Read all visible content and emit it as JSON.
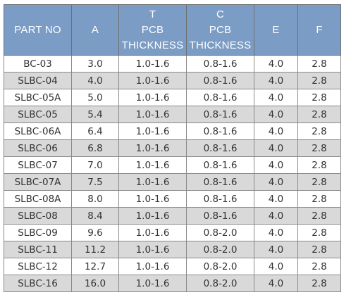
{
  "table": {
    "headers": [
      {
        "lines": [
          "PART NO"
        ]
      },
      {
        "lines": [
          "A"
        ]
      },
      {
        "lines": [
          "T",
          "PCB",
          "THICKNESS"
        ]
      },
      {
        "lines": [
          "C",
          "PCB",
          "THICKNESS"
        ]
      },
      {
        "lines": [
          "E"
        ]
      },
      {
        "lines": [
          "F"
        ]
      }
    ],
    "rows": [
      [
        "BC-03",
        "3.0",
        "1.0-1.6",
        "0.8-1.6",
        "4.0",
        "2.8"
      ],
      [
        "SLBC-04",
        "4.0",
        "1.0-1.6",
        "0.8-1.6",
        "4.0",
        "2.8"
      ],
      [
        "SLBC-05A",
        "5.0",
        "1.0-1.6",
        "0.8-1.6",
        "4.0",
        "2.8"
      ],
      [
        "SLBC-05",
        "5.4",
        "1.0-1.6",
        "0.8-1.6",
        "4.0",
        "2.8"
      ],
      [
        "SLBC-06A",
        "6.4",
        "1.0-1.6",
        "0.8-1.6",
        "4.0",
        "2.8"
      ],
      [
        "SLBC-06",
        "6.8",
        "1.0-1.6",
        "0.8-1.6",
        "4.0",
        "2.8"
      ],
      [
        "SLBC-07",
        "7.0",
        "1.0-1.6",
        "0.8-1.6",
        "4.0",
        "2.8"
      ],
      [
        "SLBC-07A",
        "7.5",
        "1.0-1.6",
        "0.8-1.6",
        "4.0",
        "2.8"
      ],
      [
        "SLBC-08A",
        "8.0",
        "1.0-1.6",
        "0.8-1.6",
        "4.0",
        "2.8"
      ],
      [
        "SLBC-08",
        "8.4",
        "1.0-1.6",
        "0.8-1.6",
        "4.0",
        "2.8"
      ],
      [
        "SLBC-09",
        "9.6",
        "1.0-1.6",
        "0.8-2.0",
        "4.0",
        "2.8"
      ],
      [
        "SLBC-11",
        "11.2",
        "1.0-1.6",
        "0.8-2.0",
        "4.0",
        "2.8"
      ],
      [
        "SLBC-12",
        "12.7",
        "1.0-1.6",
        "0.8-2.0",
        "4.0",
        "2.8"
      ],
      [
        "SLBC-16",
        "16.0",
        "1.0-1.6",
        "0.8-2.0",
        "4.0",
        "2.8"
      ]
    ]
  },
  "colors": {
    "header_bg": "#7b9cc4",
    "header_text": "#ffffff",
    "row_odd_bg": "#ffffff",
    "row_even_bg": "#d9d9d9",
    "border": "#8a8a8a",
    "cell_text": "#333333"
  }
}
